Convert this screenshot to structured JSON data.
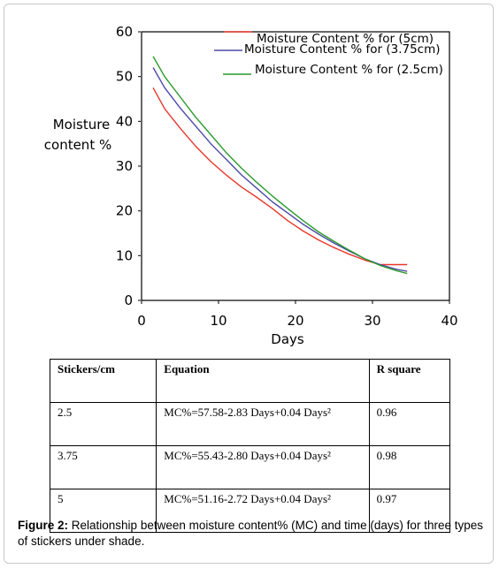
{
  "chart_data": {
    "type": "line",
    "ylabel_line1": "Moisture",
    "ylabel_line2": "content %",
    "xlabel": "Days",
    "xlim": [
      0,
      40
    ],
    "ylim": [
      0,
      60
    ],
    "xticks": [
      0,
      10,
      20,
      30,
      40
    ],
    "yticks": [
      0,
      10,
      20,
      30,
      40,
      50,
      60
    ],
    "grid": false,
    "legend_position": "top-right",
    "series": [
      {
        "name": "Moisture Content % for (5cm)",
        "color": "#e8372b",
        "x": [
          1.5,
          3,
          5,
          7,
          9,
          11,
          13,
          15,
          17,
          19,
          21,
          23,
          25,
          27,
          29,
          31,
          33,
          34.5
        ],
        "y": [
          47.5,
          42.8,
          38.5,
          34.5,
          31,
          28,
          25.3,
          23,
          20.5,
          17.8,
          15.5,
          13.5,
          11.8,
          10.3,
          9,
          8,
          8,
          8
        ]
      },
      {
        "name": "Moisture Content % for (3.75cm)",
        "color": "#4a4aa8",
        "x": [
          1.5,
          3,
          5,
          7,
          9,
          11,
          13,
          15,
          17,
          19,
          21,
          23,
          25,
          27,
          29,
          31,
          33,
          34.5
        ],
        "y": [
          52,
          47.5,
          43,
          39,
          35,
          31.5,
          28,
          25,
          22,
          19.5,
          17,
          14.8,
          12.8,
          11,
          9.3,
          8,
          7,
          6.5
        ]
      },
      {
        "name": "Moisture Content % for (2.5cm)",
        "color": "#2a9a2a",
        "x": [
          1.5,
          3,
          5,
          7,
          9,
          11,
          13,
          15,
          17,
          19,
          21,
          23,
          25,
          27,
          29,
          31,
          33,
          34.5
        ],
        "y": [
          54.5,
          50,
          45.5,
          41,
          37,
          33,
          29.5,
          26.3,
          23.3,
          20.5,
          17.8,
          15.3,
          13.2,
          11.2,
          9.3,
          7.8,
          6.7,
          6
        ]
      }
    ]
  },
  "table": {
    "headers": [
      "Stickers/cm",
      "Equation",
      "R square"
    ],
    "rows": [
      [
        "2.5",
        "MC%=57.58-2.83 Days+0.04 Days²",
        "0.96"
      ],
      [
        "3.75",
        "MC%=55.43-2.80 Days+0.04 Days²",
        "0.98"
      ],
      [
        "5",
        "MC%=51.16-2.72 Days+0.04 Days²",
        "0.97"
      ]
    ]
  },
  "caption": {
    "label": "Figure 2:",
    "text": " Relationship between moisture content% (MC) and time (days) for three types of stickers under shade."
  }
}
